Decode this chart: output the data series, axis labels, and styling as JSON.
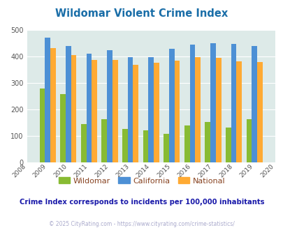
{
  "title": "Wildomar Violent Crime Index",
  "title_color": "#1a6ea8",
  "years": [
    2009,
    2010,
    2011,
    2012,
    2013,
    2014,
    2015,
    2016,
    2017,
    2018,
    2019
  ],
  "wildomar": [
    278,
    258,
    145,
    163,
    125,
    120,
    108,
    138,
    153,
    132,
    162
  ],
  "california": [
    470,
    440,
    410,
    423,
    397,
    397,
    428,
    445,
    450,
    447,
    440
  ],
  "national": [
    430,
    405,
    387,
    386,
    367,
    376,
    383,
    397,
    394,
    380,
    379
  ],
  "wildomar_color": "#88bb33",
  "california_color": "#4d90d5",
  "national_color": "#ffaa33",
  "background_color": "#ddeae8",
  "xlim_min": 2008.0,
  "xlim_max": 2020.0,
  "ylim": [
    0,
    500
  ],
  "yticks": [
    0,
    100,
    200,
    300,
    400,
    500
  ],
  "legend_labels": [
    "Wildomar",
    "California",
    "National"
  ],
  "note": "Crime Index corresponds to incidents per 100,000 inhabitants",
  "note_color": "#1a1aaa",
  "copyright": "© 2025 CityRating.com - https://www.cityrating.com/crime-statistics/",
  "copyright_color": "#aaaacc",
  "bar_width": 0.26,
  "legend_text_color": "#884422"
}
